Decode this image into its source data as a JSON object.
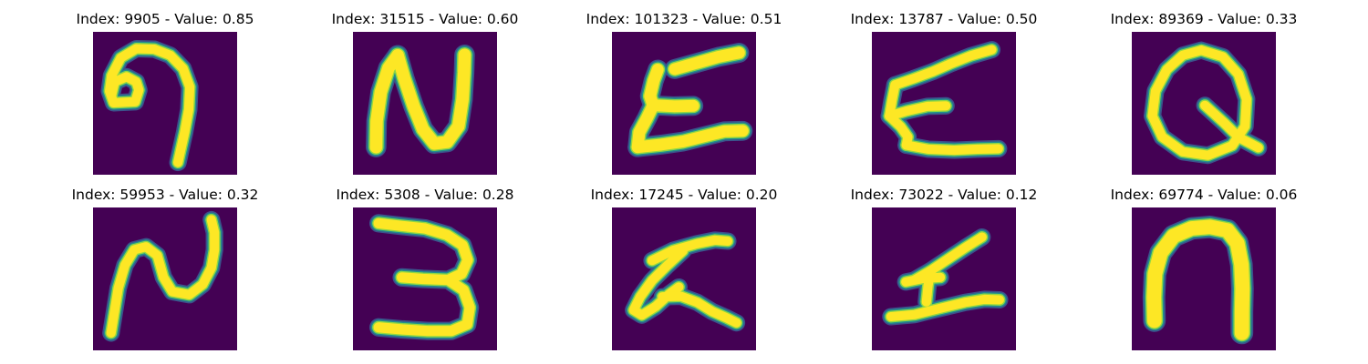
{
  "colors": {
    "background": "#440154",
    "stroke_core": "#fde725",
    "stroke_mid": "#8fd744",
    "stroke_edge": "#21918c",
    "stroke_halo": "#3b528b"
  },
  "panels": [
    {
      "title": "Index: 9905 - Value: 0.85",
      "index": 9905,
      "value": 0.85,
      "glyph": "hook-9"
    },
    {
      "title": "Index: 31515 - Value: 0.60",
      "index": 31515,
      "value": 0.6,
      "glyph": "letter-N"
    },
    {
      "title": "Index: 101323 - Value: 0.51",
      "index": 101323,
      "value": 0.51,
      "glyph": "slanted-E"
    },
    {
      "title": "Index: 13787 - Value: 0.50",
      "index": 13787,
      "value": 0.5,
      "glyph": "letter-E"
    },
    {
      "title": "Index: 89369 - Value: 0.33",
      "index": 89369,
      "value": 0.33,
      "glyph": "letter-Q"
    },
    {
      "title": "Index: 59953 - Value: 0.32",
      "index": 59953,
      "value": 0.32,
      "glyph": "rotated-N"
    },
    {
      "title": "Index: 5308 - Value: 0.28",
      "index": 5308,
      "value": 0.28,
      "glyph": "digit-3"
    },
    {
      "title": "Index: 17245 - Value: 0.20",
      "index": 17245,
      "value": 0.2,
      "glyph": "rotated-K"
    },
    {
      "title": "Index: 73022 - Value: 0.12",
      "index": 73022,
      "value": 0.12,
      "glyph": "rotated-t"
    },
    {
      "title": "Index: 69774 - Value: 0.06",
      "index": 69774,
      "value": 0.06,
      "glyph": "letter-n"
    }
  ]
}
